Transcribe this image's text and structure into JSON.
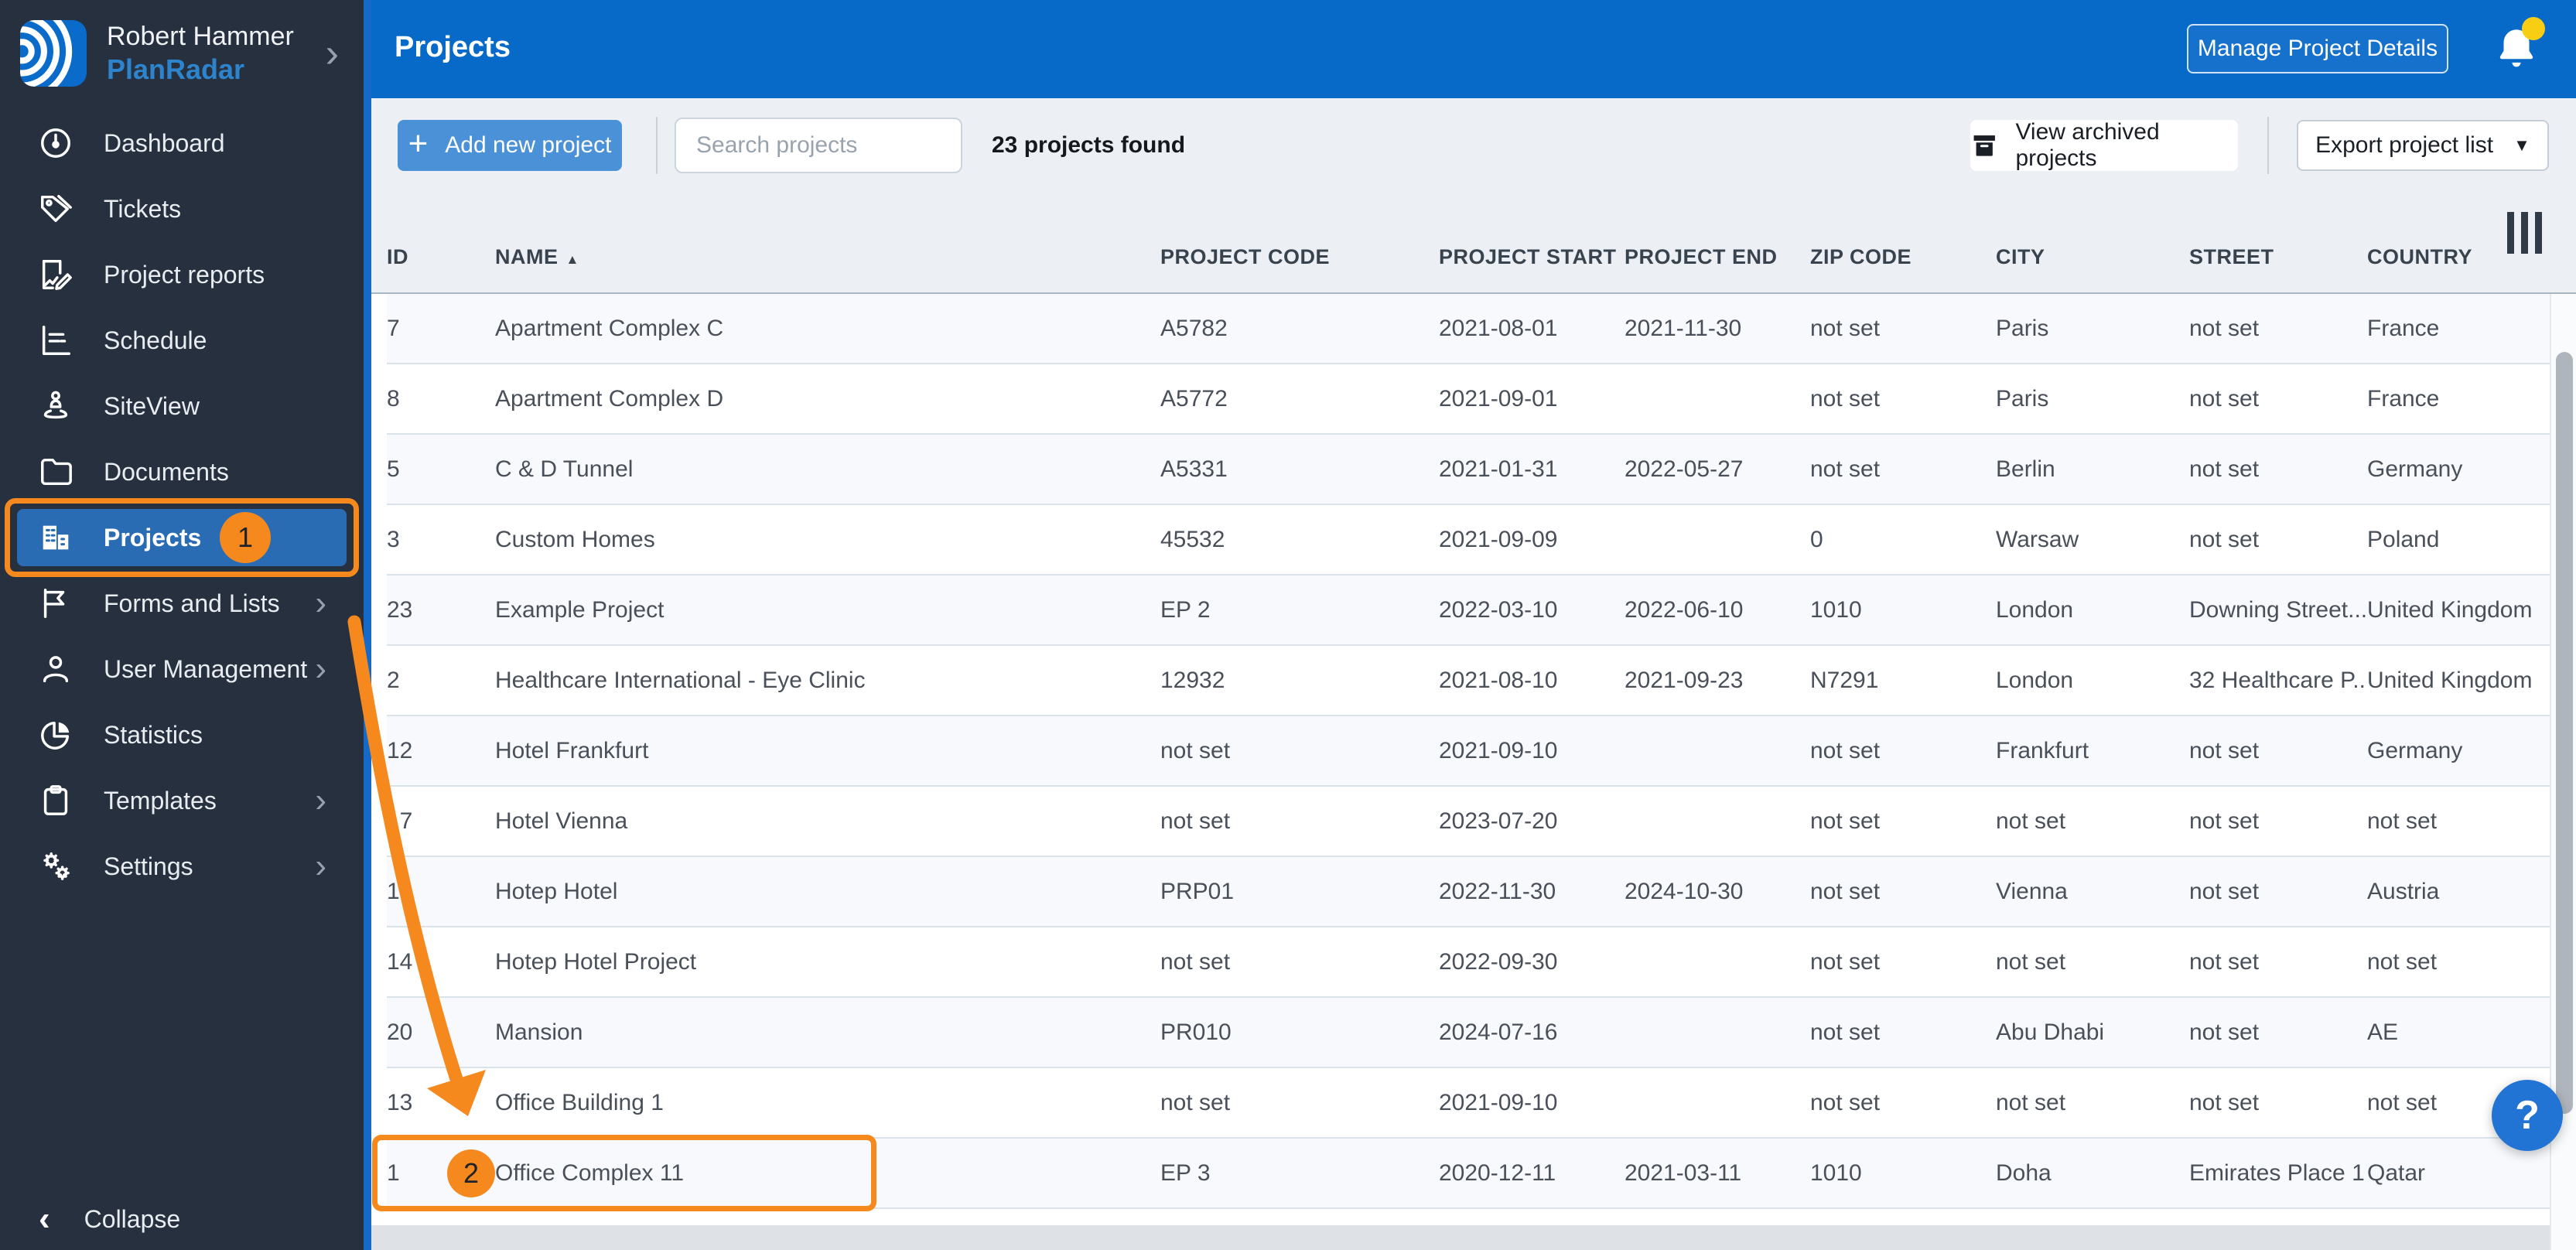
{
  "colors": {
    "annotation_orange": "#F6891D",
    "topbar_blue": "#0769C8",
    "sidebar_dark": "#27303E",
    "active_item_blue": "#2A6CB3",
    "primary_button_blue": "#4B91D7",
    "notification_yellow": "#F7CE14"
  },
  "icons": {
    "plus": "+",
    "caret_down": "▼",
    "sort_asc": "▲",
    "chevron_right": "›",
    "chevron_left": "‹",
    "help": "?"
  },
  "sidebar": {
    "user": {
      "name": "Robert Hammer",
      "brand": "PlanRadar"
    },
    "items": [
      {
        "label": "Dashboard",
        "icon": "dashboard-gauge"
      },
      {
        "label": "Tickets",
        "icon": "tag"
      },
      {
        "label": "Project reports",
        "icon": "report-edit"
      },
      {
        "label": "Schedule",
        "icon": "schedule-chart"
      },
      {
        "label": "SiteView",
        "icon": "siteview-pin"
      },
      {
        "label": "Documents",
        "icon": "folder"
      },
      {
        "label": "Projects",
        "icon": "buildings",
        "active": true,
        "badge": "1"
      },
      {
        "label": "Forms and Lists",
        "icon": "flag",
        "expandable": true
      },
      {
        "label": "User Management",
        "icon": "person",
        "expandable": true
      },
      {
        "label": "Statistics",
        "icon": "pie-chart"
      },
      {
        "label": "Templates",
        "icon": "clipboard",
        "expandable": true
      },
      {
        "label": "Settings",
        "icon": "gears",
        "expandable": true
      }
    ],
    "collapse_label": "Collapse"
  },
  "header": {
    "title": "Projects",
    "manage_button": "Manage Project Details"
  },
  "toolbar": {
    "add_button": "Add new project",
    "search_placeholder": "Search projects",
    "search_value": "",
    "results_count": "23 projects found",
    "view_archived_button": "View archived projects",
    "export_button": "Export project list"
  },
  "table": {
    "columns": [
      "ID",
      "NAME",
      "PROJECT CODE",
      "PROJECT START",
      "PROJECT END",
      "ZIP CODE",
      "CITY",
      "STREET",
      "COUNTRY"
    ],
    "column_keys": [
      "id",
      "name",
      "code",
      "start",
      "end",
      "zip",
      "city",
      "street",
      "country"
    ],
    "sort": {
      "column": "NAME",
      "direction": "asc"
    },
    "rows": [
      {
        "id": "7",
        "name": "Apartment Complex C",
        "code": "A5782",
        "start": "2021-08-01",
        "end": "2021-11-30",
        "zip": "not set",
        "city": "Paris",
        "street": "not set",
        "country": "France"
      },
      {
        "id": "8",
        "name": "Apartment Complex D",
        "code": "A5772",
        "start": "2021-09-01",
        "end": "",
        "zip": "not set",
        "city": "Paris",
        "street": "not set",
        "country": "France"
      },
      {
        "id": "5",
        "name": "C & D Tunnel",
        "code": "A5331",
        "start": "2021-01-31",
        "end": "2022-05-27",
        "zip": "not set",
        "city": "Berlin",
        "street": "not set",
        "country": "Germany"
      },
      {
        "id": "3",
        "name": "Custom Homes",
        "code": "45532",
        "start": "2021-09-09",
        "end": "",
        "zip": "0",
        "city": "Warsaw",
        "street": "not set",
        "country": "Poland"
      },
      {
        "id": "23",
        "name": "Example Project",
        "code": "EP 2",
        "start": "2022-03-10",
        "end": "2022-06-10",
        "zip": "1010",
        "city": "London",
        "street": "Downing Street...",
        "country": "United Kingdom"
      },
      {
        "id": "2",
        "name": "Healthcare International - Eye Clinic",
        "code": "12932",
        "start": "2021-08-10",
        "end": "2021-09-23",
        "zip": "N7291",
        "city": "London",
        "street": "32 Healthcare P...",
        "country": "United Kingdom"
      },
      {
        "id": "12",
        "name": "Hotel Frankfurt",
        "code": "not set",
        "start": "2021-09-10",
        "end": "",
        "zip": "not set",
        "city": "Frankfurt",
        "street": "not set",
        "country": "Germany"
      },
      {
        "id": "17",
        "name": "Hotel Vienna",
        "code": "not set",
        "start": "2023-07-20",
        "end": "",
        "zip": "not set",
        "city": "not set",
        "street": "not set",
        "country": "not set"
      },
      {
        "id": "15",
        "name": "Hotep Hotel",
        "code": "PRP01",
        "start": "2022-11-30",
        "end": "2024-10-30",
        "zip": "not set",
        "city": "Vienna",
        "street": "not set",
        "country": "Austria"
      },
      {
        "id": "14",
        "name": "Hotep Hotel Project",
        "code": "not set",
        "start": "2022-09-30",
        "end": "",
        "zip": "not set",
        "city": "not set",
        "street": "not set",
        "country": "not set"
      },
      {
        "id": "20",
        "name": "Mansion",
        "code": "PR010",
        "start": "2024-07-16",
        "end": "",
        "zip": "not set",
        "city": "Abu Dhabi",
        "street": "not set",
        "country": "AE"
      },
      {
        "id": "13",
        "name": "Office Building 1",
        "code": "not set",
        "start": "2021-09-10",
        "end": "",
        "zip": "not set",
        "city": "not set",
        "street": "not set",
        "country": "not set"
      },
      {
        "id": "1",
        "name": "Office Complex 11",
        "code": "EP 3",
        "start": "2020-12-11",
        "end": "2021-03-11",
        "zip": "1010",
        "city": "Doha",
        "street": "Emirates Place 1",
        "country": "Qatar",
        "highlighted": true
      }
    ]
  },
  "annotations": {
    "step1": "1",
    "step2": "2",
    "highlighted_row_name": "Office Complex 11"
  },
  "help_button": "?"
}
